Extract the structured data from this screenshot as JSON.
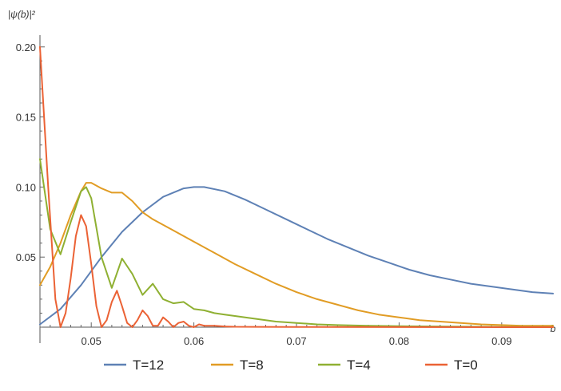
{
  "chart_data": {
    "type": "line",
    "title": "",
    "xlabel": "b",
    "ylabel": "|ψ(b)|²",
    "xlim": [
      0.045,
      0.095
    ],
    "ylim": [
      0.0,
      0.205
    ],
    "xticks": [
      0.05,
      0.06,
      0.07,
      0.08,
      0.09
    ],
    "yticks": [
      0.05,
      0.1,
      0.15,
      0.2
    ],
    "grid": false,
    "legend_position": "bottom",
    "series": [
      {
        "name": "T=12",
        "color": "#5E81B5",
        "x": [
          0.045,
          0.047,
          0.049,
          0.051,
          0.053,
          0.055,
          0.057,
          0.059,
          0.06,
          0.061,
          0.063,
          0.065,
          0.067,
          0.069,
          0.071,
          0.073,
          0.075,
          0.077,
          0.079,
          0.081,
          0.083,
          0.085,
          0.087,
          0.089,
          0.091,
          0.093,
          0.095
        ],
        "y": [
          0.002,
          0.013,
          0.03,
          0.05,
          0.068,
          0.082,
          0.093,
          0.099,
          0.1,
          0.1,
          0.097,
          0.091,
          0.084,
          0.077,
          0.07,
          0.063,
          0.057,
          0.051,
          0.046,
          0.041,
          0.037,
          0.034,
          0.031,
          0.029,
          0.027,
          0.025,
          0.024
        ]
      },
      {
        "name": "T=8",
        "color": "#E19C24",
        "x": [
          0.045,
          0.046,
          0.047,
          0.048,
          0.049,
          0.0495,
          0.05,
          0.051,
          0.052,
          0.053,
          0.054,
          0.055,
          0.056,
          0.058,
          0.06,
          0.062,
          0.064,
          0.066,
          0.068,
          0.07,
          0.072,
          0.074,
          0.076,
          0.078,
          0.08,
          0.082,
          0.084,
          0.086,
          0.088,
          0.09,
          0.092,
          0.095
        ],
        "y": [
          0.03,
          0.043,
          0.06,
          0.08,
          0.097,
          0.103,
          0.103,
          0.099,
          0.096,
          0.096,
          0.09,
          0.082,
          0.077,
          0.069,
          0.061,
          0.053,
          0.045,
          0.038,
          0.031,
          0.025,
          0.02,
          0.016,
          0.012,
          0.009,
          0.007,
          0.005,
          0.004,
          0.003,
          0.002,
          0.0015,
          0.001,
          0.001
        ]
      },
      {
        "name": "T=4",
        "color": "#8FB032",
        "x": [
          0.045,
          0.046,
          0.047,
          0.048,
          0.049,
          0.0495,
          0.05,
          0.051,
          0.052,
          0.053,
          0.054,
          0.055,
          0.056,
          0.057,
          0.058,
          0.059,
          0.06,
          0.061,
          0.062,
          0.063,
          0.064,
          0.065,
          0.066,
          0.068,
          0.07,
          0.072,
          0.074,
          0.077,
          0.08,
          0.085,
          0.09,
          0.095
        ],
        "y": [
          0.12,
          0.07,
          0.052,
          0.075,
          0.097,
          0.1,
          0.092,
          0.05,
          0.028,
          0.049,
          0.038,
          0.023,
          0.031,
          0.02,
          0.017,
          0.018,
          0.013,
          0.012,
          0.01,
          0.009,
          0.008,
          0.007,
          0.006,
          0.004,
          0.003,
          0.002,
          0.0015,
          0.001,
          0.0007,
          0.0004,
          0.0002,
          0.0001
        ]
      },
      {
        "name": "T=0",
        "color": "#EB6235",
        "x": [
          0.045,
          0.0458,
          0.0465,
          0.047,
          0.0475,
          0.048,
          0.0485,
          0.049,
          0.0495,
          0.05,
          0.0505,
          0.051,
          0.0515,
          0.052,
          0.0525,
          0.053,
          0.0535,
          0.054,
          0.0545,
          0.055,
          0.0555,
          0.056,
          0.0565,
          0.057,
          0.0575,
          0.058,
          0.0585,
          0.059,
          0.0595,
          0.06,
          0.0605,
          0.061,
          0.062,
          0.063,
          0.064,
          0.066,
          0.07,
          0.095
        ],
        "y": [
          0.2,
          0.1,
          0.02,
          0.0,
          0.01,
          0.035,
          0.065,
          0.08,
          0.072,
          0.045,
          0.015,
          0.0,
          0.005,
          0.018,
          0.026,
          0.015,
          0.003,
          0.0,
          0.005,
          0.012,
          0.008,
          0.001,
          0.001,
          0.007,
          0.004,
          0.0,
          0.003,
          0.004,
          0.001,
          0.0,
          0.002,
          0.001,
          0.001,
          0.0005,
          0.0003,
          0.0002,
          0.0001,
          0.0
        ]
      }
    ]
  }
}
